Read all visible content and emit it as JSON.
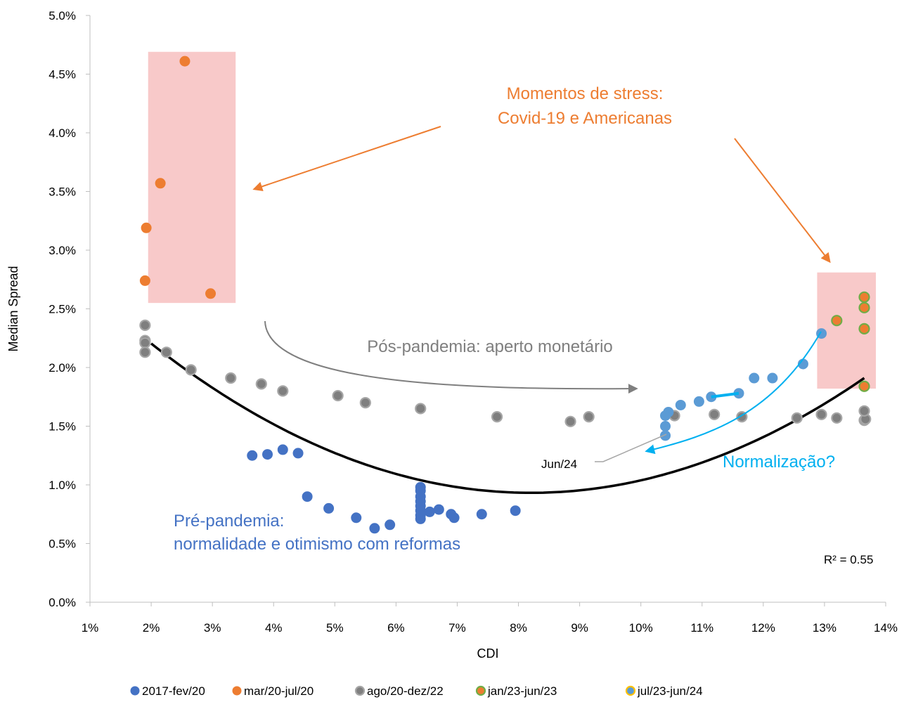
{
  "chart_data": {
    "type": "scatter",
    "title": "",
    "xlabel": "CDI",
    "ylabel": "Median Spread",
    "xlim": [
      1,
      14
    ],
    "ylim": [
      0.0,
      5.0
    ],
    "x_ticks": [
      1,
      2,
      3,
      4,
      5,
      6,
      7,
      8,
      9,
      10,
      11,
      12,
      13,
      14
    ],
    "x_tick_labels": [
      "1%",
      "2%",
      "3%",
      "4%",
      "5%",
      "6%",
      "7%",
      "8%",
      "9%",
      "10%",
      "11%",
      "12%",
      "13%",
      "14%"
    ],
    "y_ticks": [
      0.0,
      0.5,
      1.0,
      1.5,
      2.0,
      2.5,
      3.0,
      3.5,
      4.0,
      4.5,
      5.0
    ],
    "y_tick_labels": [
      "0.0%",
      "0.5%",
      "1.0%",
      "1.5%",
      "2.0%",
      "2.5%",
      "3.0%",
      "3.5%",
      "4.0%",
      "4.5%",
      "5.0%"
    ],
    "grid": false,
    "legend_position": "bottom",
    "series": [
      {
        "name": "2017-fev/20",
        "color": "#4472C4",
        "edge": "#4472C4",
        "points": [
          [
            3.65,
            1.25
          ],
          [
            3.9,
            1.26
          ],
          [
            4.15,
            1.3
          ],
          [
            4.4,
            1.27
          ],
          [
            4.55,
            0.9
          ],
          [
            4.9,
            0.8
          ],
          [
            5.35,
            0.72
          ],
          [
            5.65,
            0.63
          ],
          [
            5.9,
            0.66
          ],
          [
            6.4,
            0.98
          ],
          [
            6.4,
            0.95
          ],
          [
            6.4,
            0.9
          ],
          [
            6.4,
            0.86
          ],
          [
            6.4,
            0.82
          ],
          [
            6.4,
            0.78
          ],
          [
            6.4,
            0.74
          ],
          [
            6.4,
            0.71
          ],
          [
            6.55,
            0.77
          ],
          [
            6.7,
            0.79
          ],
          [
            6.9,
            0.75
          ],
          [
            6.95,
            0.72
          ],
          [
            7.4,
            0.75
          ],
          [
            7.95,
            0.78
          ]
        ]
      },
      {
        "name": "mar/20-jul/20",
        "color": "#ED7D31",
        "edge": "#ED7D31",
        "points": [
          [
            1.9,
            2.74
          ],
          [
            1.92,
            3.19
          ],
          [
            2.15,
            3.57
          ],
          [
            2.55,
            4.61
          ],
          [
            2.97,
            2.63
          ]
        ]
      },
      {
        "name": "ago/20-dez/22",
        "color": "#7F7F7F",
        "edge": "#A6A6A6",
        "points": [
          [
            1.9,
            2.36
          ],
          [
            1.9,
            2.23
          ],
          [
            1.9,
            2.21
          ],
          [
            1.9,
            2.13
          ],
          [
            2.25,
            2.13
          ],
          [
            2.65,
            1.98
          ],
          [
            3.3,
            1.91
          ],
          [
            3.8,
            1.86
          ],
          [
            4.15,
            1.8
          ],
          [
            5.05,
            1.76
          ],
          [
            5.5,
            1.7
          ],
          [
            6.4,
            1.65
          ],
          [
            7.65,
            1.58
          ],
          [
            8.85,
            1.54
          ],
          [
            9.15,
            1.58
          ],
          [
            10.55,
            1.59
          ],
          [
            11.2,
            1.6
          ],
          [
            11.65,
            1.58
          ],
          [
            12.55,
            1.57
          ],
          [
            12.95,
            1.6
          ],
          [
            13.2,
            1.57
          ],
          [
            13.65,
            1.55
          ],
          [
            13.67,
            1.56
          ],
          [
            13.65,
            1.63
          ]
        ]
      },
      {
        "name": "jan/23-jun/23",
        "color": "#ED7D31",
        "edge": "#70AD47",
        "points": [
          [
            13.2,
            2.4
          ],
          [
            13.65,
            2.6
          ],
          [
            13.65,
            2.51
          ],
          [
            13.65,
            2.33
          ],
          [
            13.65,
            1.84
          ]
        ]
      },
      {
        "name": "jul/23-jun/24",
        "color": "#5B9BD5",
        "edge": "#5B9BD5",
        "legend_edge": "#FFC000",
        "points": [
          [
            12.95,
            2.29
          ],
          [
            12.65,
            2.03
          ],
          [
            12.15,
            1.91
          ],
          [
            11.85,
            1.91
          ],
          [
            11.6,
            1.78
          ],
          [
            11.15,
            1.75
          ],
          [
            10.95,
            1.71
          ],
          [
            10.65,
            1.68
          ],
          [
            10.45,
            1.62
          ],
          [
            10.4,
            1.59
          ],
          [
            10.4,
            1.5
          ],
          [
            10.4,
            1.42
          ]
        ]
      }
    ],
    "trendline": {
      "type": "polynomial",
      "order": 2,
      "color": "#000000",
      "x_range": [
        2.0,
        13.65
      ],
      "coefficients": [
        3.1555,
        -0.5418,
        0.03301
      ],
      "r2_label": "R² = 0.55"
    },
    "annotations": {
      "stress_text": [
        "Momentos de stress:",
        "Covid-19 e Americanas"
      ],
      "stress_color": "#ED7D31",
      "post_text": "Pós-pandemia: aperto monetário",
      "post_color": "#7F7F7F",
      "pre_text": [
        "Pré-pandemia:",
        "normalidade e otimismo com reformas"
      ],
      "pre_color": "#4472C4",
      "norm_text": "Normalização?",
      "norm_color": "#00B0F0",
      "jun_label": "Jun/24",
      "highlight_color": "#F8C9C9",
      "highlight_boxes": [
        {
          "x": [
            1.95,
            3.38
          ],
          "y": [
            2.55,
            4.69
          ]
        },
        {
          "x": [
            12.88,
            13.84
          ],
          "y": [
            1.82,
            2.81
          ]
        }
      ],
      "bold_segment": [
        [
          11.15,
          1.75
        ],
        [
          11.6,
          1.78
        ]
      ]
    }
  }
}
